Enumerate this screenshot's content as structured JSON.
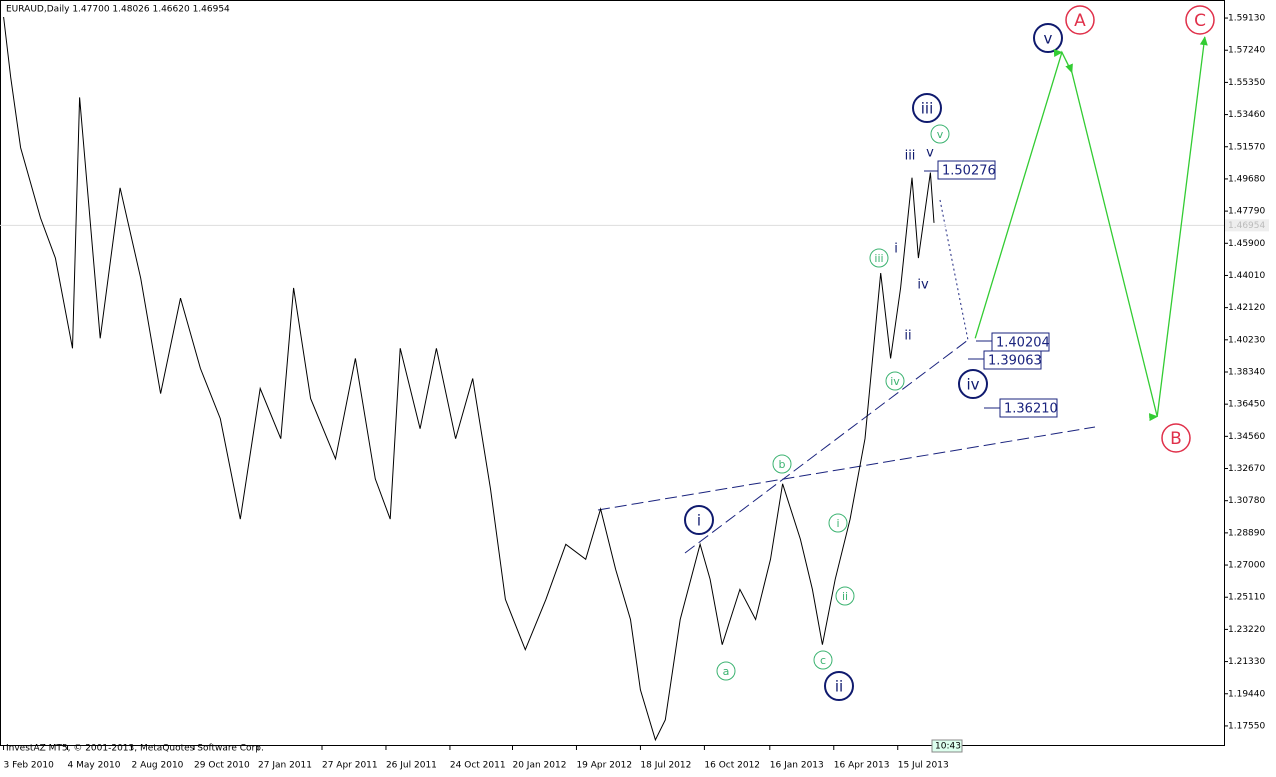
{
  "chart_data": {
    "type": "line",
    "title": "EURAUD,Daily  1.47700 1.48026 1.46620 1.46954",
    "footer": "InvestAZ MT5, © 2001-2013, MetaQuotes Software Corp.",
    "clock": "10:43",
    "xlim": [
      "29 Jan 2010",
      "17 Oct 2014"
    ],
    "ylim": [
      1.1643,
      1.6019
    ],
    "xticks": [
      "3 Feb 2010",
      "4 May 2010",
      "2 Aug 2010",
      "29 Oct 2010",
      "27 Jan 2011",
      "27 Apr 2011",
      "26 Jul 2011",
      "24 Oct 2011",
      "20 Jan 2012",
      "19 Apr 2012",
      "18 Jul 2012",
      "16 Oct 2012",
      "16 Jan 2013",
      "16 Apr 2013",
      "15 Jul 2013"
    ],
    "yticks": [
      {
        "value": 1.5913,
        "label": "1.59130"
      },
      {
        "value": 1.5724,
        "label": "1.57240"
      },
      {
        "value": 1.5535,
        "label": "1.55350"
      },
      {
        "value": 1.5346,
        "label": "1.53460"
      },
      {
        "value": 1.5157,
        "label": "1.51570"
      },
      {
        "value": 1.4968,
        "label": "1.49680"
      },
      {
        "value": 1.4779,
        "label": "1.47790"
      },
      {
        "value": 1.459,
        "label": "1.45900"
      },
      {
        "value": 1.4401,
        "label": "1.44010"
      },
      {
        "value": 1.4212,
        "label": "1.42120"
      },
      {
        "value": 1.4023,
        "label": "1.40230"
      },
      {
        "value": 1.3834,
        "label": "1.38340"
      },
      {
        "value": 1.3645,
        "label": "1.36450"
      },
      {
        "value": 1.3456,
        "label": "1.34560"
      },
      {
        "value": 1.3267,
        "label": "1.32670"
      },
      {
        "value": 1.3078,
        "label": "1.30780"
      },
      {
        "value": 1.2889,
        "label": "1.28890"
      },
      {
        "value": 1.27,
        "label": "1.27000"
      },
      {
        "value": 1.2511,
        "label": "1.25110"
      },
      {
        "value": 1.2322,
        "label": "1.23220"
      },
      {
        "value": 1.2133,
        "label": "1.21330"
      },
      {
        "value": 1.1944,
        "label": "1.19440"
      },
      {
        "value": 1.1755,
        "label": "1.17550"
      }
    ],
    "last_price": {
      "value": 1.46954,
      "label": "1.46954"
    },
    "series": [
      {
        "color": "#000000",
        "x": [
          "3 Feb 2010",
          "13 Feb 2010",
          "27 Feb 2010",
          "27 Mar 2010",
          "17 Apr 2010",
          "11 May 2010",
          "21 May 2010",
          "19 Jun 2010",
          "17 Jul 2010",
          "15 Aug 2010",
          "12 Sep 2010",
          "10 Oct 2010",
          "7 Nov 2010",
          "5 Dec 2010",
          "2 Jan 2011",
          "30 Jan 2011",
          "28 Feb 2011",
          "18 Mar 2011",
          "11 Apr 2011",
          "16 May 2011",
          "13 Jun 2011",
          "11 Jul 2011",
          "1 Aug 2011",
          "15 Aug 2011",
          "12 Sep 2011",
          "5 Oct 2011",
          "1 Nov 2011",
          "25 Nov 2011",
          "20 Dec 2011",
          "10 Jan 2012",
          "7 Feb 2012",
          "7 Mar 2012",
          "4 Apr 2012",
          "2 May 2012",
          "23 May 2012",
          "13 Jun 2012",
          "4 Jul 2012",
          "18 Jul 2012",
          "8 Aug 2012",
          "22 Aug 2012",
          "12 Sep 2012",
          "10 Oct 2012",
          "24 Oct 2012",
          "10 Nov 2012",
          "5 Dec 2012",
          "27 Dec 2012",
          "17 Jan 2013",
          "3 Feb 2013",
          "28 Feb 2013",
          "17 Mar 2013",
          "31 Mar 2013",
          "18 Apr 2013",
          "9 May 2013",
          "30 May 2013",
          "21 Jun 2013",
          "5 Jul 2013",
          "19 Jul 2013",
          "4 Aug 2013",
          "13 Aug 2013",
          "30 Aug 2013",
          "4 Sep 2013"
        ],
        "values": [
          1.5919,
          1.5565,
          1.5152,
          1.4739,
          1.4503,
          1.3973,
          1.5447,
          1.4032,
          1.4916,
          1.4385,
          1.3707,
          1.4268,
          1.3855,
          1.356,
          1.297,
          1.3737,
          1.3442,
          1.4328,
          1.3678,
          1.3324,
          1.3914,
          1.3206,
          1.297,
          1.3973,
          1.3501,
          1.3973,
          1.3442,
          1.3796,
          1.3147,
          1.2498,
          1.2203,
          1.2498,
          1.2822,
          1.2734,
          1.3029,
          1.2675,
          1.238,
          1.1967,
          1.1673,
          1.1791,
          1.238,
          1.2822,
          1.2616,
          1.2232,
          1.2557,
          1.238,
          1.2734,
          1.3177,
          1.2852,
          1.2557,
          1.2232,
          1.2616,
          1.297,
          1.3442,
          1.4415,
          1.3914,
          1.4328,
          1.4975,
          1.4503,
          1.5005,
          1.471
        ]
      },
      {
        "color": "#33cc33",
        "x": [
          "1 Nov 2013",
          "3 Mar 2014",
          "17 Mar 2014",
          "15 Jul 2014",
          "20 Sep 2014"
        ],
        "values": [
          1.4032,
          1.5712,
          1.5594,
          1.3572,
          1.5801
        ]
      }
    ],
    "wave_labels": {
      "navy_circled": [
        "v",
        "iii",
        "iv",
        "i",
        "ii"
      ],
      "red_circled": [
        "A",
        "C",
        "B"
      ],
      "green_circled": [
        "v",
        "iii",
        "iv",
        "b",
        "i",
        "ii",
        "a",
        "c"
      ],
      "navy_plain": [
        "iii",
        "v",
        "i",
        "iv",
        "ii"
      ]
    },
    "price_boxes": [
      "1.50276",
      "1.40204",
      "1.39063",
      "1.36210"
    ]
  }
}
